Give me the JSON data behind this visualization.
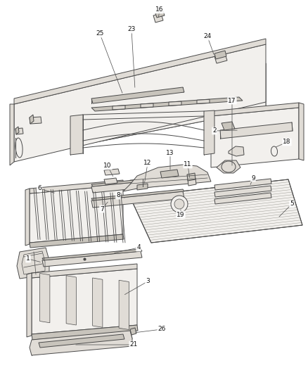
{
  "background_color": "#ffffff",
  "line_color": "#4a4a4a",
  "fill_light": "#f2f0ed",
  "fill_mid": "#e0dcd6",
  "fill_dark": "#c8c4bc",
  "figsize": [
    4.38,
    5.33
  ],
  "dpi": 100
}
